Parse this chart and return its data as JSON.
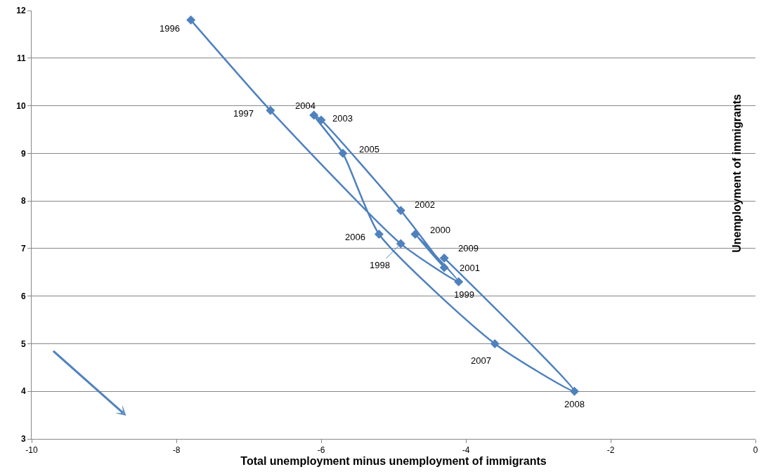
{
  "chart_data": {
    "type": "line",
    "xlabel": "Total unemployment minus unemployment of immigrants",
    "ylabel": "Unemployment of immigrants",
    "x": [
      -7.8,
      -6.7,
      -4.9,
      -4.1,
      -4.7,
      -4.3,
      -4.9,
      -6.0,
      -6.1,
      -5.7,
      -5.2,
      -3.6,
      -2.5,
      -4.3
    ],
    "series": [
      {
        "color": "#4f81bd",
        "values": [
          11.8,
          9.9,
          7.1,
          6.3,
          7.3,
          6.6,
          7.8,
          9.7,
          9.8,
          9.0,
          7.3,
          5.0,
          4.0,
          6.8
        ]
      }
    ],
    "annotations": [
      {
        "text": "1996",
        "x": -7.8,
        "y": 11.8
      },
      {
        "text": "1997",
        "x": -6.7,
        "y": 9.9
      },
      {
        "text": "1998",
        "x": -4.9,
        "y": 7.1
      },
      {
        "text": "1999",
        "x": -4.1,
        "y": 6.3
      },
      {
        "text": "2000",
        "x": -4.7,
        "y": 7.3
      },
      {
        "text": "2001",
        "x": -4.3,
        "y": 6.6
      },
      {
        "text": "2002",
        "x": -4.9,
        "y": 7.8
      },
      {
        "text": "2003",
        "x": -6.0,
        "y": 9.7
      },
      {
        "text": "2004",
        "x": -6.1,
        "y": 9.8
      },
      {
        "text": "2005",
        "x": -5.7,
        "y": 9.0
      },
      {
        "text": "2006",
        "x": -5.2,
        "y": 7.3
      },
      {
        "text": "2007",
        "x": -3.6,
        "y": 5.0
      },
      {
        "text": "2008",
        "x": -2.5,
        "y": 4.0
      },
      {
        "text": "2009",
        "x": -4.3,
        "y": 6.8
      }
    ],
    "xlim": [
      -10,
      0
    ],
    "xticks": [
      -10,
      -8,
      -6,
      -4,
      -2,
      0
    ],
    "ylim": [
      3,
      12
    ],
    "yticks": [
      3,
      4,
      5,
      6,
      7,
      8,
      9,
      10,
      11,
      12
    ],
    "grid": "y",
    "marker": "diamond",
    "line_style": "solid"
  }
}
